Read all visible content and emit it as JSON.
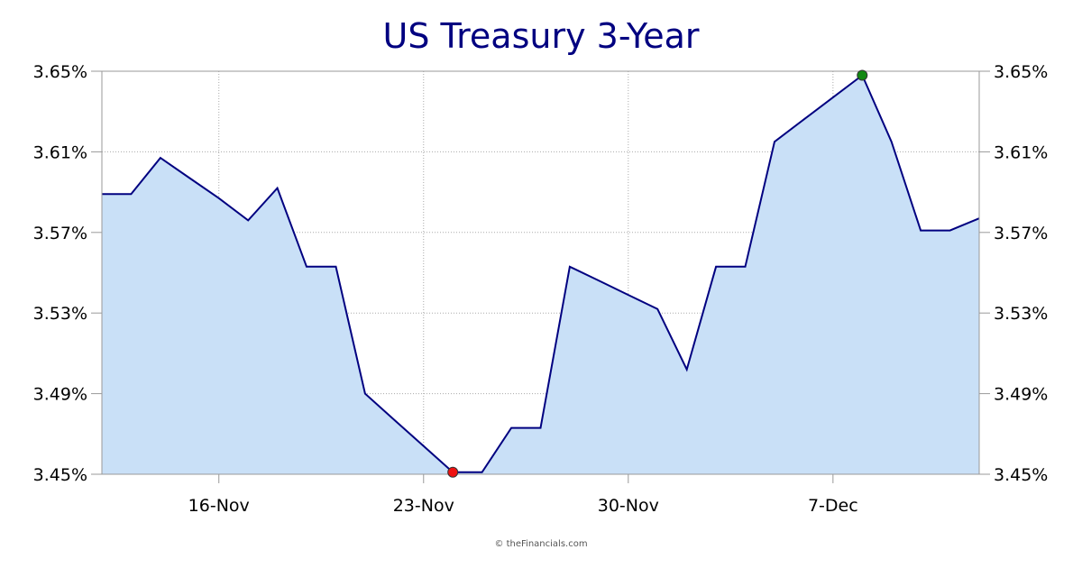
{
  "chart_data": {
    "type": "area",
    "title": "US Treasury 3-Year",
    "xlabel": "",
    "ylabel": "",
    "ylim": [
      3.45,
      3.65
    ],
    "y_ticks": [
      "3.45%",
      "3.49%",
      "3.53%",
      "3.57%",
      "3.61%",
      "3.65%"
    ],
    "y_tick_values": [
      3.45,
      3.49,
      3.53,
      3.57,
      3.61,
      3.65
    ],
    "x_ticks": [
      "16-Nov",
      "23-Nov",
      "30-Nov",
      "7-Dec"
    ],
    "x_tick_dates": [
      "2023-11-16",
      "2023-11-23",
      "2023-11-30",
      "2023-12-07"
    ],
    "xlim": [
      "2023-11-12",
      "2023-12-12"
    ],
    "grid": true,
    "series": [
      {
        "x": [
          "2023-11-12",
          "2023-11-13",
          "2023-11-14",
          "2023-11-15",
          "2023-11-16",
          "2023-11-17",
          "2023-11-18",
          "2023-11-19",
          "2023-11-20",
          "2023-11-21",
          "2023-11-22",
          "2023-11-23",
          "2023-11-24",
          "2023-11-25",
          "2023-11-26",
          "2023-11-27",
          "2023-11-28",
          "2023-11-29",
          "2023-11-30",
          "2023-12-01",
          "2023-12-02",
          "2023-12-03",
          "2023-12-04",
          "2023-12-05",
          "2023-12-06",
          "2023-12-07",
          "2023-12-08",
          "2023-12-09",
          "2023-12-10",
          "2023-12-11",
          "2023-12-12"
        ],
        "y": [
          3.589,
          3.589,
          3.607,
          3.597,
          3.587,
          3.576,
          3.592,
          3.553,
          3.553,
          3.49,
          3.477,
          3.464,
          3.451,
          3.451,
          3.473,
          3.473,
          3.553,
          3.546,
          3.539,
          3.532,
          3.502,
          3.553,
          3.553,
          3.615,
          3.626,
          3.637,
          3.648,
          3.615,
          3.571,
          3.571,
          3.577
        ],
        "line_color": "#000080",
        "fill_color": "#c9e0f7"
      }
    ],
    "markers": [
      {
        "x": "2023-11-24",
        "y": 3.451,
        "color": "#ee1111",
        "role": "low"
      },
      {
        "x": "2023-12-08",
        "y": 3.648,
        "color": "#118811",
        "role": "high"
      }
    ]
  },
  "footer": {
    "copyright": "© theFinancials.com"
  }
}
